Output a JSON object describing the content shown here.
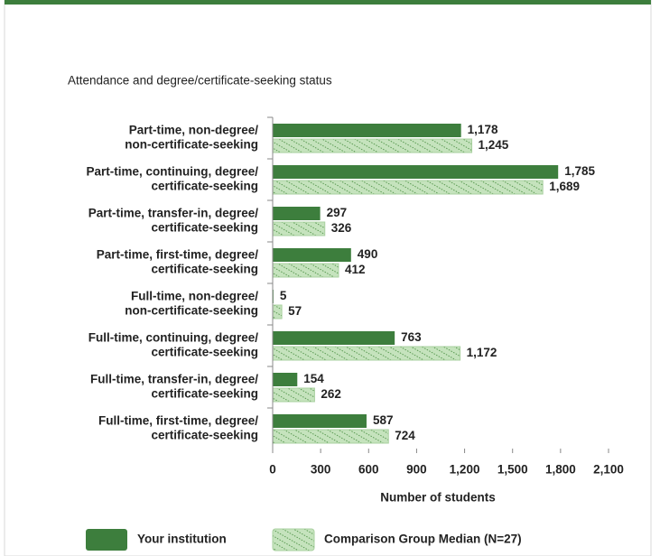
{
  "chart_data": {
    "type": "bar",
    "orientation": "horizontal",
    "title": "Attendance and degree/certificate-seeking status",
    "xlabel": "Number of students",
    "categories": [
      [
        "Part-time, non-degree/",
        "non-certificate-seeking"
      ],
      [
        "Part-time, continuing, degree/",
        "certificate-seeking"
      ],
      [
        "Part-time, transfer-in, degree/",
        "certificate-seeking"
      ],
      [
        "Part-time, first-time, degree/",
        "certificate-seeking"
      ],
      [
        "Full-time, non-degree/",
        "non-certificate-seeking"
      ],
      [
        "Full-time, continuing, degree/",
        "certificate-seeking"
      ],
      [
        "Full-time, transfer-in, degree/",
        "certificate-seeking"
      ],
      [
        "Full-time, first-time, degree/",
        "certificate-seeking"
      ]
    ],
    "series": [
      {
        "name": "Your institution",
        "color": "#3d7e3d",
        "values": [
          1178,
          1785,
          297,
          490,
          5,
          763,
          154,
          587
        ],
        "value_labels": [
          "1,178",
          "1,785",
          "297",
          "490",
          "5",
          "763",
          "154",
          "587"
        ]
      },
      {
        "name": "Comparison Group Median (N=27)",
        "color": "#c5e3bd",
        "hatch": true,
        "values": [
          1245,
          1689,
          326,
          412,
          57,
          1172,
          262,
          724
        ],
        "value_labels": [
          "1,245",
          "1,689",
          "326",
          "412",
          "57",
          "1,172",
          "262",
          "724"
        ]
      }
    ],
    "xlim": [
      0,
      2100
    ],
    "xticks": [
      0,
      300,
      600,
      900,
      {
        "value": 1200,
        "label": "1,200"
      },
      {
        "value": 1500,
        "label": "1,500"
      },
      {
        "value": 1800,
        "label": "1,800"
      },
      {
        "value": 2100,
        "label": "2,100"
      }
    ],
    "legend": "bottom"
  }
}
